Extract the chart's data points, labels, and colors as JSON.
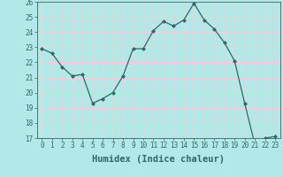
{
  "x": [
    0,
    1,
    2,
    3,
    4,
    5,
    6,
    7,
    8,
    9,
    10,
    11,
    12,
    13,
    14,
    15,
    16,
    17,
    18,
    19,
    20,
    21,
    22,
    23
  ],
  "y": [
    22.9,
    22.6,
    21.7,
    21.1,
    21.2,
    19.3,
    19.6,
    20.0,
    21.1,
    22.9,
    22.9,
    24.1,
    24.7,
    24.4,
    24.8,
    25.9,
    24.8,
    24.2,
    23.3,
    22.1,
    19.3,
    16.6,
    17.0,
    17.1
  ],
  "line_color": "#336666",
  "marker": "D",
  "marker_size": 2.0,
  "bg_color": "#b3e8e8",
  "grid_color": "#ffcccc",
  "xlabel": "Humidex (Indice chaleur)",
  "xlim": [
    -0.5,
    23.5
  ],
  "ylim": [
    17,
    26
  ],
  "yticks": [
    17,
    18,
    19,
    20,
    21,
    22,
    23,
    24,
    25,
    26
  ],
  "xticks": [
    0,
    1,
    2,
    3,
    4,
    5,
    6,
    7,
    8,
    9,
    10,
    11,
    12,
    13,
    14,
    15,
    16,
    17,
    18,
    19,
    20,
    21,
    22,
    23
  ],
  "tick_color": "#336666",
  "label_fontsize": 5.5,
  "xlabel_fontsize": 7.5
}
